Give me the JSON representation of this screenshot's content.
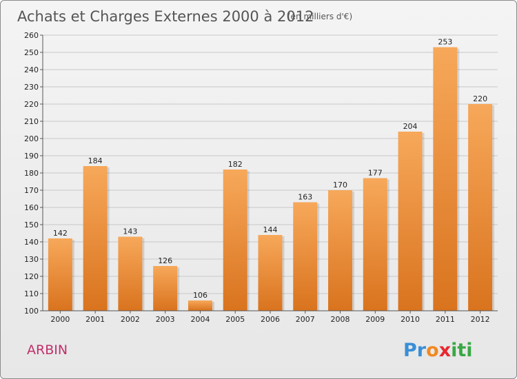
{
  "title": "Achats et Charges Externes 2000 à 2012",
  "subtitle": "(en milliers d'€)",
  "commune": "ARBIN",
  "logo": {
    "letters": [
      "P",
      "r",
      "o",
      "x",
      "i",
      "t",
      "i"
    ],
    "colors": [
      "#3a8fd6",
      "#3a8fd6",
      "#f08a24",
      "#e8272f",
      "#3aa845",
      "#3aa845",
      "#3aa845"
    ]
  },
  "colors": {
    "bar_light": "#f7a85a",
    "bar_dark": "#d9731e",
    "grid": "#c8c8c8",
    "title": "#555555",
    "commune": "#c0306a"
  },
  "chart_data": {
    "type": "bar",
    "categories": [
      "2000",
      "2001",
      "2002",
      "2003",
      "2004",
      "2005",
      "2006",
      "2007",
      "2008",
      "2009",
      "2010",
      "2011",
      "2012"
    ],
    "values": [
      142,
      184,
      143,
      126,
      106,
      182,
      144,
      163,
      170,
      177,
      204,
      253,
      220
    ],
    "ylim": [
      100,
      260
    ],
    "yticks": [
      100,
      110,
      120,
      130,
      140,
      150,
      160,
      170,
      180,
      190,
      200,
      210,
      220,
      230,
      240,
      250,
      260
    ],
    "grid": true,
    "xlabel": "",
    "ylabel": ""
  }
}
